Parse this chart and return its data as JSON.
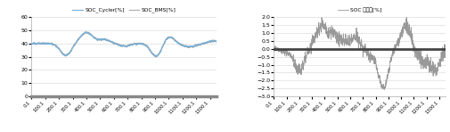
{
  "left_legend": [
    "SOC_Cycler[%]",
    "SOC_BMS[%]"
  ],
  "left_legend_colors": [
    "#6699cc",
    "#aaaaaa"
  ],
  "left_ylim": [
    0,
    60
  ],
  "left_yticks": [
    0,
    10,
    20,
    30,
    40,
    50,
    60
  ],
  "right_legend": [
    "SOC 오자율[%]"
  ],
  "right_legend_colors": [
    "#999999"
  ],
  "right_ylim": [
    -3,
    2
  ],
  "right_yticks": [
    -3,
    -2.5,
    -2,
    -1.5,
    -1,
    -0.5,
    0,
    0.5,
    1,
    1.5,
    2
  ],
  "xtick_labels": [
    "0.1",
    "100.1",
    "200.1",
    "300.1",
    "400.1",
    "500.1",
    "600.1",
    "700.1",
    "800.1",
    "900.1",
    "1000.1",
    "1100.1",
    "1200.1",
    "1300.1"
  ],
  "n_points": 1350,
  "zero_line_color": "#444444",
  "background_color": "#ffffff",
  "grid_color": "#dddddd",
  "line_color_cycler": "#7bafd4",
  "line_color_bms": "#aaaaaa",
  "line_color_error": "#999999",
  "spine_color": "#888888"
}
